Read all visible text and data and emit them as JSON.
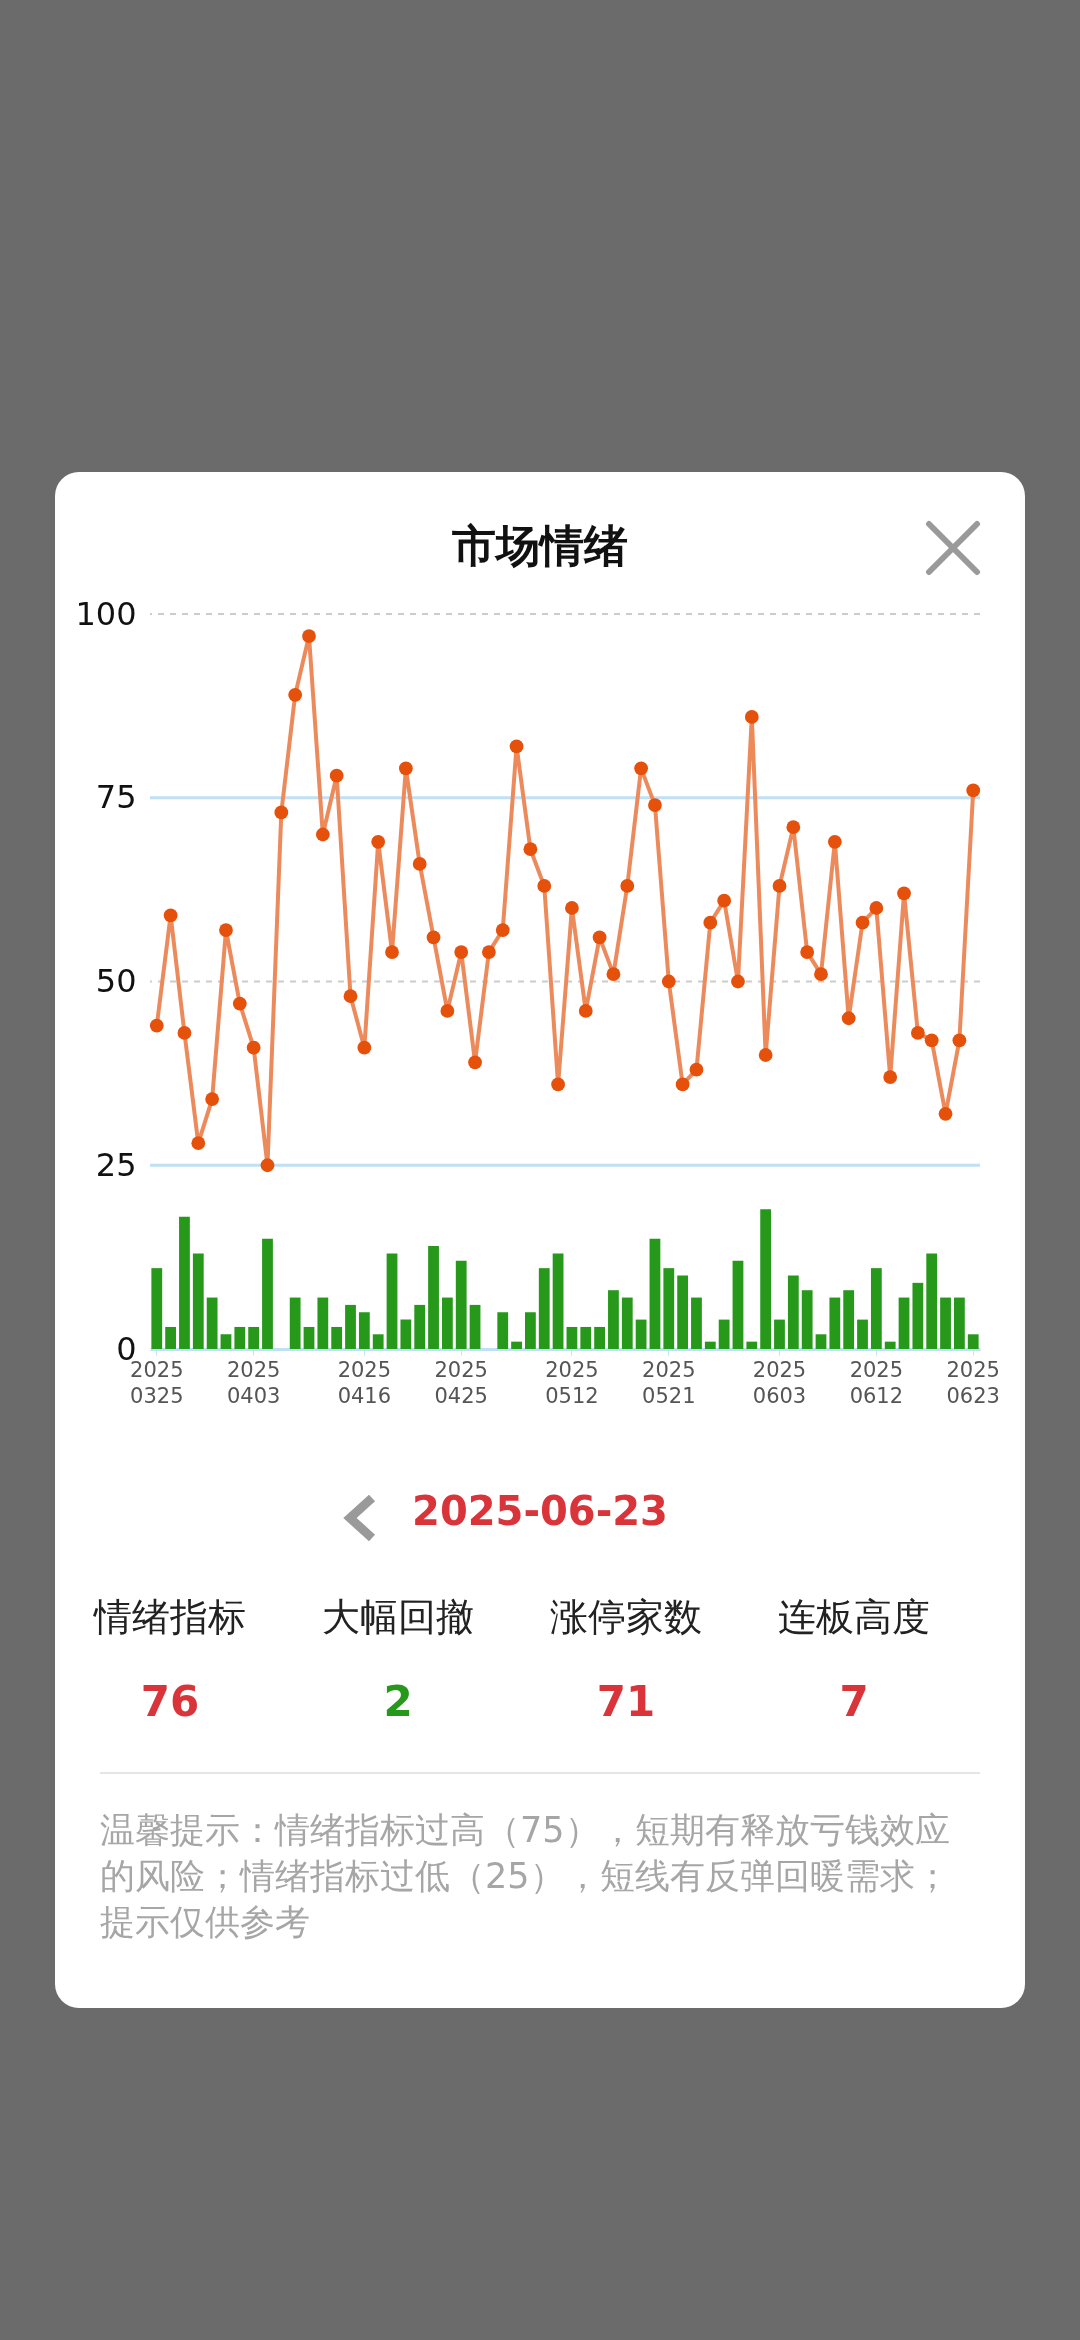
{
  "chart_data": {
    "type": "line",
    "title": "市场情绪",
    "categories": [
      "2025\n0325",
      null,
      null,
      null,
      null,
      null,
      null,
      "2025\n0403",
      null,
      null,
      null,
      null,
      null,
      null,
      null,
      "2025\n0416",
      null,
      null,
      null,
      null,
      null,
      null,
      "2025\n0425",
      null,
      null,
      null,
      null,
      null,
      null,
      null,
      "2025\n0512",
      null,
      null,
      null,
      null,
      null,
      null,
      "2025\n0521",
      null,
      null,
      null,
      null,
      null,
      null,
      null,
      "2025\n0603",
      null,
      null,
      null,
      null,
      null,
      null,
      "2025\n0612",
      null,
      null,
      null,
      null,
      null,
      null,
      "2025\n0623"
    ],
    "series": [
      {
        "type": "bar",
        "color": "#26981a",
        "values": [
          11,
          3,
          18,
          13,
          7,
          2,
          3,
          3,
          15,
          0,
          7,
          3,
          7,
          3,
          6,
          5,
          2,
          13,
          4,
          6,
          14,
          7,
          12,
          6,
          0,
          5,
          1,
          5,
          11,
          13,
          3,
          3,
          3,
          8,
          7,
          4,
          15,
          11,
          10,
          7,
          1,
          4,
          12,
          1,
          19,
          4,
          10,
          8,
          2,
          7,
          8,
          4,
          11,
          1,
          7,
          9,
          13,
          7,
          7,
          2
        ]
      },
      {
        "color": "#ec8a5c",
        "values": [
          44,
          59,
          43,
          28,
          34,
          57,
          47,
          41,
          25,
          73,
          89,
          97,
          70,
          78,
          48,
          41,
          69,
          54,
          79,
          66,
          56,
          46,
          54,
          39,
          54,
          57,
          82,
          68,
          63,
          36,
          60,
          46,
          56,
          51,
          63,
          79,
          74,
          50,
          36,
          38,
          58,
          61,
          50,
          86,
          40,
          63,
          71,
          54,
          51,
          69,
          45,
          58,
          60,
          37,
          62,
          43,
          42,
          32,
          42,
          76
        ]
      }
    ],
    "ylim": [
      0,
      100
    ],
    "yticks": [
      0,
      25,
      50,
      75,
      100
    ],
    "marker": "circle",
    "ref_lines": [
      {
        "axis": "y",
        "value": 75,
        "color": "#bfe0f5"
      },
      {
        "axis": "y",
        "value": 25,
        "color": "#bfe0f5"
      },
      {
        "axis": "y",
        "value": 100,
        "color": "#cccccc",
        "line_style": "dashed"
      },
      {
        "axis": "y",
        "value": 50,
        "color": "#cccccc",
        "line_style": "dashed"
      }
    ],
    "annotations": [
      "2025-06-23",
      "情绪指标",
      "大幅回撤",
      "涨停家数",
      "连板高度",
      "76",
      "2",
      "71",
      "7",
      "温馨提示：情绪指标过高（75），短期有释放亏钱效应的风险；情绪指标过低（25），短线有反弹回暖需求；提示仅供参考"
    ]
  }
}
